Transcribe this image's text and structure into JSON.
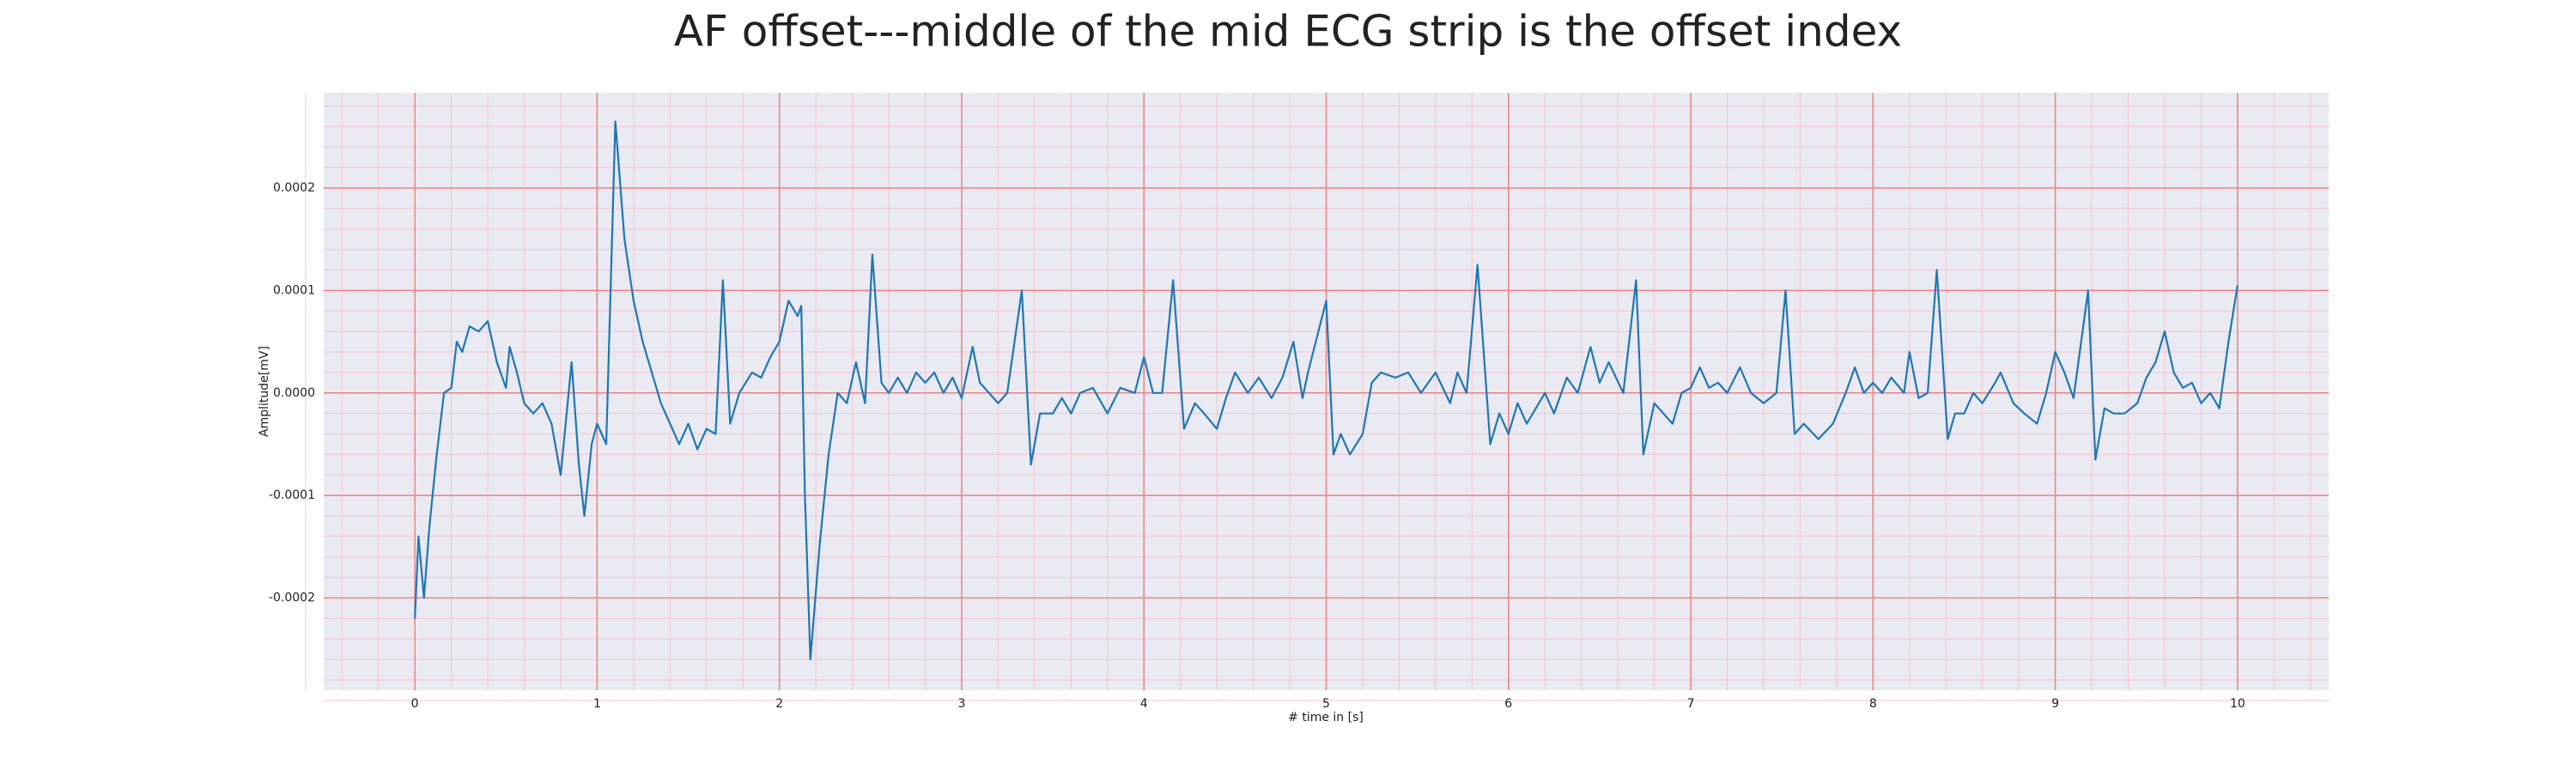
{
  "chart_data": {
    "type": "line",
    "title": "AF offset---middle of the mid ECG strip is the offset index",
    "xlabel": "# time in [s]",
    "ylabel": "Amplitude[mV]",
    "color": "#1f77b4",
    "grid": true,
    "minor_grid": true,
    "grid_color": "#f08080",
    "minor_grid_color": "#f5c6d0",
    "background": "#eaeaf2",
    "xlim": [
      -0.5,
      10.5
    ],
    "xticks": [
      0,
      1,
      2,
      3,
      4,
      5,
      6,
      7,
      8,
      9,
      10
    ],
    "ylim": [
      -0.00029,
      0.000293
    ],
    "yticks": [
      -0.0002,
      -0.0001,
      {
        "value": 0,
        "label": "0.0000"
      },
      0.0001,
      0.0002
    ],
    "x": [
      0.0,
      0.02,
      0.05,
      0.08,
      0.12,
      0.16,
      0.2,
      0.23,
      0.26,
      0.3,
      0.35,
      0.4,
      0.45,
      0.5,
      0.52,
      0.56,
      0.6,
      0.65,
      0.7,
      0.75,
      0.8,
      0.86,
      0.9,
      0.93,
      0.97,
      1.0,
      1.05,
      1.1,
      1.15,
      1.2,
      1.25,
      1.3,
      1.35,
      1.4,
      1.45,
      1.5,
      1.55,
      1.6,
      1.65,
      1.69,
      1.73,
      1.78,
      1.85,
      1.9,
      1.95,
      2.0,
      2.05,
      2.1,
      2.12,
      2.14,
      2.17,
      2.22,
      2.27,
      2.32,
      2.37,
      2.42,
      2.47,
      2.51,
      2.56,
      2.6,
      2.65,
      2.7,
      2.75,
      2.8,
      2.85,
      2.9,
      2.95,
      3.0,
      3.06,
      3.1,
      3.15,
      3.2,
      3.25,
      3.33,
      3.38,
      3.43,
      3.5,
      3.55,
      3.6,
      3.65,
      3.72,
      3.8,
      3.87,
      3.95,
      4.0,
      4.05,
      4.1,
      4.16,
      4.22,
      4.28,
      4.33,
      4.4,
      4.45,
      4.5,
      4.57,
      4.63,
      4.7,
      4.76,
      4.82,
      4.87,
      4.9,
      5.0,
      5.04,
      5.08,
      5.13,
      5.2,
      5.25,
      5.3,
      5.38,
      5.45,
      5.52,
      5.6,
      5.68,
      5.72,
      5.77,
      5.83,
      5.9,
      5.95,
      6.0,
      6.05,
      6.1,
      6.2,
      6.25,
      6.32,
      6.38,
      6.45,
      6.5,
      6.55,
      6.63,
      6.7,
      6.74,
      6.8,
      6.85,
      6.9,
      6.95,
      7.0,
      7.05,
      7.1,
      7.15,
      7.2,
      7.27,
      7.33,
      7.4,
      7.47,
      7.52,
      7.57,
      7.62,
      7.7,
      7.78,
      7.85,
      7.9,
      7.95,
      8.0,
      8.05,
      8.1,
      8.17,
      8.2,
      8.25,
      8.3,
      8.35,
      8.41,
      8.45,
      8.5,
      8.55,
      8.6,
      8.67,
      8.7,
      8.77,
      8.83,
      8.9,
      8.95,
      9.0,
      9.05,
      9.1,
      9.18,
      9.22,
      9.27,
      9.32,
      9.38,
      9.45,
      9.5,
      9.55,
      9.6,
      9.65,
      9.7,
      9.75,
      9.8,
      9.85,
      9.9,
      9.95,
      10.0
    ],
    "values": [
      -0.00022,
      -0.00014,
      -0.0002,
      -0.00013,
      -6e-05,
      0.0,
      5e-06,
      5e-05,
      4e-05,
      6.5e-05,
      6e-05,
      7e-05,
      3e-05,
      5e-06,
      4.5e-05,
      2e-05,
      -1e-05,
      -2e-05,
      -1e-05,
      -3e-05,
      -8e-05,
      3e-05,
      -7e-05,
      -0.00012,
      -5e-05,
      -3e-05,
      -5e-05,
      0.000265,
      0.00015,
      9e-05,
      5e-05,
      2e-05,
      -1e-05,
      -3e-05,
      -5e-05,
      -3e-05,
      -5.5e-05,
      -3.5e-05,
      -4e-05,
      0.00011,
      -3e-05,
      0.0,
      2e-05,
      1.5e-05,
      3.5e-05,
      5e-05,
      9e-05,
      7.5e-05,
      8.5e-05,
      -0.0001,
      -0.00026,
      -0.00015,
      -6e-05,
      0.0,
      -1e-05,
      3e-05,
      -1e-05,
      0.000135,
      1e-05,
      0.0,
      1.5e-05,
      0.0,
      2e-05,
      1e-05,
      2e-05,
      0.0,
      1.5e-05,
      -5e-06,
      4.5e-05,
      1e-05,
      0.0,
      -1e-05,
      0.0,
      0.0001,
      -7e-05,
      -2e-05,
      -2e-05,
      -5e-06,
      -2e-05,
      0.0,
      5e-06,
      -2e-05,
      5e-06,
      0.0,
      3.5e-05,
      0.0,
      0.0,
      0.00011,
      -3.5e-05,
      -1e-05,
      -2e-05,
      -3.5e-05,
      -5e-06,
      2e-05,
      0.0,
      1.5e-05,
      -5e-06,
      1.5e-05,
      5e-05,
      -5e-06,
      2e-05,
      9e-05,
      -6e-05,
      -4e-05,
      -6e-05,
      -4e-05,
      1e-05,
      2e-05,
      1.5e-05,
      2e-05,
      0.0,
      2e-05,
      -1e-05,
      2e-05,
      0.0,
      0.000125,
      -5e-05,
      -2e-05,
      -4e-05,
      -1e-05,
      -3e-05,
      0.0,
      -2e-05,
      1.5e-05,
      0.0,
      4.5e-05,
      1e-05,
      3e-05,
      0.0,
      0.00011,
      -6e-05,
      -1e-05,
      -2e-05,
      -3e-05,
      0.0,
      5e-06,
      2.5e-05,
      5e-06,
      1e-05,
      0.0,
      2.5e-05,
      0.0,
      -1e-05,
      0.0,
      0.0001,
      -4e-05,
      -3e-05,
      -4.5e-05,
      -3e-05,
      0.0,
      2.5e-05,
      0.0,
      1e-05,
      0.0,
      1.5e-05,
      0.0,
      4e-05,
      -5e-06,
      0.0,
      0.00012,
      -4.5e-05,
      -2e-05,
      -2e-05,
      0.0,
      -1e-05,
      1e-05,
      2e-05,
      -1e-05,
      -2e-05,
      -3e-05,
      0.0,
      4e-05,
      2e-05,
      -5e-06,
      0.0001,
      -6.5e-05,
      -1.5e-05,
      -2e-05,
      -2e-05,
      -1e-05,
      1.5e-05,
      3e-05,
      6e-05,
      2e-05,
      5e-06,
      1e-05,
      -1e-05,
      0.0,
      -1.5e-05,
      5e-05,
      0.000105
    ]
  }
}
